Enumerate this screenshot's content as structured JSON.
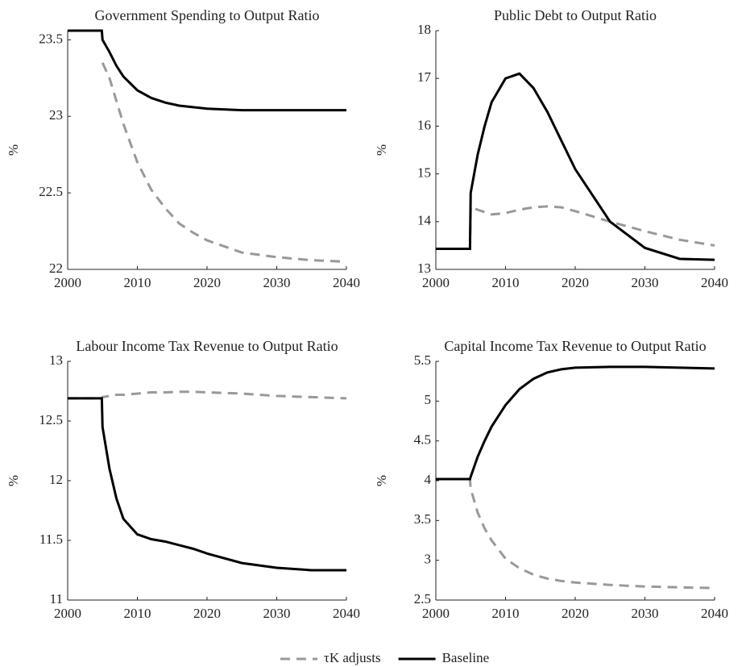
{
  "chart_data": [
    {
      "type": "line",
      "title": "Government Spending to Output Ratio",
      "ylabel": "%",
      "x": [
        2000,
        2004.9,
        2005,
        2006,
        2007,
        2008,
        2010,
        2012,
        2014,
        2016,
        2018,
        2020,
        2025,
        2030,
        2035,
        2040
      ],
      "xlim": [
        2000,
        2040
      ],
      "xticks": [
        2000,
        2010,
        2020,
        2030,
        2040
      ],
      "ylim": [
        22,
        23.56
      ],
      "yticks": [
        22,
        22.5,
        23,
        23.5
      ],
      "series": [
        {
          "color": "#999999",
          "dash": true,
          "values": [
            null,
            null,
            23.35,
            23.25,
            23.1,
            22.95,
            22.7,
            22.52,
            22.4,
            22.3,
            22.24,
            22.19,
            22.11,
            22.08,
            22.06,
            22.05
          ]
        },
        {
          "color": "#000000",
          "dash": false,
          "values": [
            23.56,
            23.56,
            23.5,
            23.42,
            23.33,
            23.26,
            23.17,
            23.12,
            23.09,
            23.07,
            23.06,
            23.05,
            23.04,
            23.04,
            23.04,
            23.04
          ]
        }
      ]
    },
    {
      "type": "line",
      "title": "Public Debt to Output Ratio",
      "ylabel": "%",
      "x": [
        2000,
        2004.9,
        2005,
        2006,
        2007,
        2008,
        2010,
        2012,
        2014,
        2016,
        2018,
        2020,
        2025,
        2030,
        2035,
        2040
      ],
      "xlim": [
        2000,
        2040
      ],
      "xticks": [
        2000,
        2010,
        2020,
        2030,
        2040
      ],
      "ylim": [
        13,
        18
      ],
      "yticks": [
        13,
        14,
        15,
        16,
        17,
        18
      ],
      "series": [
        {
          "color": "#999999",
          "dash": true,
          "values": [
            13.43,
            13.43,
            14.3,
            14.25,
            14.2,
            14.15,
            14.18,
            14.25,
            14.3,
            14.32,
            14.3,
            14.22,
            14.0,
            13.8,
            13.62,
            13.5
          ]
        },
        {
          "color": "#000000",
          "dash": false,
          "values": [
            13.43,
            13.43,
            14.6,
            15.4,
            16.0,
            16.5,
            17.0,
            17.1,
            16.8,
            16.3,
            15.7,
            15.1,
            14.0,
            13.45,
            13.22,
            13.2
          ]
        }
      ]
    },
    {
      "type": "line",
      "title": "Labour Income Tax Revenue to Output Ratio",
      "ylabel": "%",
      "x": [
        2000,
        2004.9,
        2005,
        2006,
        2007,
        2008,
        2010,
        2012,
        2014,
        2016,
        2018,
        2020,
        2025,
        2030,
        2035,
        2040
      ],
      "xlim": [
        2000,
        2040
      ],
      "xticks": [
        2000,
        2010,
        2020,
        2030,
        2040
      ],
      "ylim": [
        11,
        13
      ],
      "yticks": [
        11,
        11.5,
        12,
        12.5,
        13
      ],
      "series": [
        {
          "color": "#999999",
          "dash": true,
          "values": [
            12.69,
            12.69,
            12.7,
            12.71,
            12.72,
            12.72,
            12.73,
            12.74,
            12.74,
            12.745,
            12.745,
            12.74,
            12.73,
            12.71,
            12.7,
            12.69
          ]
        },
        {
          "color": "#000000",
          "dash": false,
          "values": [
            12.69,
            12.69,
            12.45,
            12.1,
            11.85,
            11.68,
            11.55,
            11.51,
            11.49,
            11.46,
            11.43,
            11.39,
            11.31,
            11.27,
            11.25,
            11.25
          ]
        }
      ]
    },
    {
      "type": "line",
      "title": "Capital Income Tax Revenue to Output Ratio",
      "ylabel": "%",
      "x": [
        2000,
        2004.9,
        2005,
        2006,
        2007,
        2008,
        2010,
        2012,
        2014,
        2016,
        2018,
        2020,
        2025,
        2030,
        2035,
        2040
      ],
      "xlim": [
        2000,
        2040
      ],
      "xticks": [
        2000,
        2010,
        2020,
        2030,
        2040
      ],
      "ylim": [
        2.5,
        5.5
      ],
      "yticks": [
        2.5,
        3,
        3.5,
        4,
        4.5,
        5,
        5.5
      ],
      "series": [
        {
          "color": "#999999",
          "dash": true,
          "values": [
            4.02,
            4.02,
            3.9,
            3.6,
            3.4,
            3.25,
            3.02,
            2.9,
            2.82,
            2.77,
            2.74,
            2.72,
            2.69,
            2.67,
            2.66,
            2.65
          ]
        },
        {
          "color": "#000000",
          "dash": false,
          "values": [
            4.02,
            4.02,
            4.05,
            4.3,
            4.5,
            4.68,
            4.95,
            5.15,
            5.28,
            5.36,
            5.4,
            5.42,
            5.43,
            5.43,
            5.42,
            5.41
          ]
        }
      ]
    }
  ],
  "legend": [
    {
      "name": "τK adjusts",
      "color": "#999999",
      "dash": true
    },
    {
      "name": "Baseline",
      "color": "#000000",
      "dash": false
    }
  ]
}
